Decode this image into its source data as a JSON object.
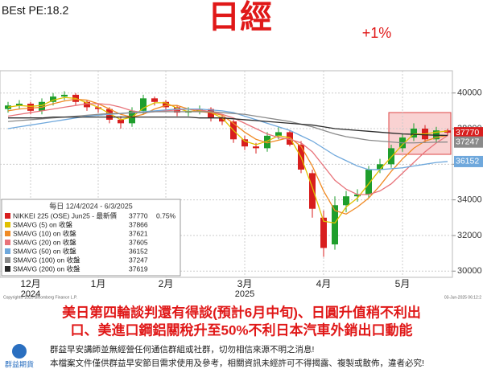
{
  "header": {
    "pe": "BEst PE:18.2",
    "title": "日經",
    "change": "+1%"
  },
  "chart_data": {
    "type": "candlestick",
    "open": [
      39100,
      39300,
      39400,
      39000,
      39500,
      39800,
      39900,
      39500,
      39200,
      39100,
      38500,
      38300,
      39000,
      39700,
      39500,
      39200,
      38900,
      39000,
      39100,
      38600,
      38400,
      37400,
      37000,
      36900,
      37600,
      37800,
      37100,
      35500,
      33000,
      31500,
      33700,
      34200,
      34300,
      35700,
      36000,
      36900,
      37500,
      38000,
      37400,
      37900
    ],
    "high": [
      39500,
      39600,
      39500,
      39700,
      40000,
      40100,
      40000,
      39600,
      39400,
      39200,
      38700,
      39200,
      39900,
      39800,
      39600,
      39300,
      39200,
      39300,
      39200,
      38800,
      38500,
      37600,
      37200,
      37800,
      38100,
      37900,
      37300,
      35700,
      33400,
      34200,
      34500,
      34600,
      35900,
      36300,
      37100,
      37700,
      38300,
      38200,
      38100,
      38000
    ],
    "low": [
      38900,
      39100,
      38800,
      38800,
      39300,
      39600,
      39300,
      39000,
      38900,
      38300,
      38000,
      38100,
      38800,
      39300,
      39000,
      38700,
      38700,
      38800,
      38400,
      38200,
      37200,
      36800,
      36600,
      36700,
      37400,
      37000,
      35500,
      33000,
      30800,
      31200,
      33300,
      33900,
      34100,
      35500,
      35800,
      36700,
      37300,
      37200,
      37200,
      37600
    ],
    "close": [
      39300,
      39400,
      39000,
      39500,
      39800,
      39900,
      39500,
      39200,
      39100,
      38500,
      38300,
      39000,
      39700,
      39500,
      39200,
      38900,
      39000,
      39100,
      38600,
      38400,
      37400,
      37000,
      36900,
      37600,
      37800,
      37100,
      35700,
      33500,
      31300,
      33700,
      34200,
      34300,
      35700,
      36000,
      36900,
      37500,
      38000,
      37400,
      37900,
      37770
    ],
    "up_color": "#1f9e2c",
    "down_color": "#d81e1e",
    "price_name": "NIKKEI 225 (OSE) Jun25 - 最新價",
    "price_color": "#d81e1e",
    "last_change": "0.75%",
    "legend_title": "每日 12/4/2024 - 6/3/2025",
    "series": [
      {
        "name": "SMAVG (5)  on 收盤",
        "color": "#e0c000",
        "values": [
          39200,
          39300,
          39250,
          39300,
          39600,
          39750,
          39700,
          39450,
          39200,
          38850,
          38500,
          38650,
          39150,
          39450,
          39450,
          39150,
          38950,
          39000,
          38900,
          38600,
          37900,
          37300,
          37100,
          37300,
          37600,
          37500,
          36400,
          34700,
          32800,
          32700,
          33600,
          34100,
          34900,
          35700,
          36400,
          37100,
          37700,
          37700,
          37800,
          37866
        ]
      },
      {
        "name": "SMAVG (10)  on 收盤",
        "color": "#f08a24",
        "values": [
          39000,
          39100,
          39150,
          39200,
          39400,
          39550,
          39650,
          39600,
          39400,
          39100,
          38800,
          38650,
          38800,
          39100,
          39300,
          39300,
          39100,
          38950,
          38900,
          38750,
          38300,
          37800,
          37400,
          37200,
          37350,
          37500,
          37000,
          35900,
          34500,
          33400,
          33200,
          33600,
          34100,
          34800,
          35600,
          36300,
          36900,
          37300,
          37500,
          37621
        ]
      },
      {
        "name": "SMAVG (20)  on 收盤",
        "color": "#e8737a",
        "values": [
          38700,
          38800,
          38900,
          39000,
          39100,
          39200,
          39300,
          39400,
          39400,
          39350,
          39200,
          39000,
          38900,
          38950,
          39000,
          39050,
          39100,
          39050,
          38950,
          38800,
          38600,
          38300,
          38000,
          37700,
          37500,
          37400,
          37200,
          36700,
          35900,
          35100,
          34600,
          34300,
          34300,
          34500,
          34900,
          35500,
          36100,
          36700,
          37200,
          37605
        ]
      },
      {
        "name": "SMAVG (50)  on 收盤",
        "color": "#6fa8dc",
        "values": [
          38000,
          38100,
          38200,
          38300,
          38400,
          38500,
          38600,
          38700,
          38750,
          38800,
          38850,
          38900,
          38950,
          39000,
          39050,
          39100,
          39100,
          39100,
          39050,
          39000,
          38900,
          38700,
          38500,
          38300,
          38100,
          37900,
          37600,
          37300,
          36900,
          36500,
          36200,
          35900,
          35700,
          35700,
          35750,
          35800,
          35900,
          36000,
          36100,
          36152
        ]
      },
      {
        "name": "SMAVG (100)  on 收盤",
        "color": "#8a8a8a",
        "values": [
          38400,
          38450,
          38500,
          38550,
          38600,
          38650,
          38700,
          38750,
          38800,
          38850,
          38850,
          38900,
          38900,
          38950,
          38950,
          38950,
          38950,
          38950,
          38950,
          38900,
          38850,
          38800,
          38700,
          38600,
          38500,
          38400,
          38250,
          38100,
          37900,
          37700,
          37550,
          37450,
          37350,
          37300,
          37250,
          37200,
          37200,
          37220,
          37240,
          37247
        ]
      },
      {
        "name": "SMAVG (200)  on 收盤",
        "color": "#2a2a2a",
        "values": [
          38600,
          38600,
          38600,
          38600,
          38650,
          38650,
          38650,
          38650,
          38650,
          38650,
          38650,
          38650,
          38650,
          38650,
          38650,
          38650,
          38650,
          38600,
          38600,
          38600,
          38550,
          38500,
          38450,
          38400,
          38350,
          38300,
          38250,
          38200,
          38100,
          38000,
          37950,
          37900,
          37850,
          37800,
          37750,
          37700,
          37680,
          37650,
          37630,
          37619
        ]
      }
    ],
    "xticks": [
      {
        "value": 2,
        "label": "12月"
      },
      {
        "value": 8,
        "label": "1月"
      },
      {
        "value": 14,
        "label": "2月"
      },
      {
        "value": 21,
        "label": "3月"
      },
      {
        "value": 28,
        "label": "4月"
      },
      {
        "value": 35,
        "label": "5月"
      }
    ],
    "year_ticks": [
      {
        "value": 2,
        "label": "2024"
      },
      {
        "value": 21,
        "label": "2025"
      }
    ],
    "ylim": [
      29650,
      41250
    ],
    "yticks": [
      30000,
      32000,
      34000,
      36000,
      38000,
      40000
    ],
    "grid": true,
    "tags": [
      {
        "series": "close",
        "color": "#d81e1e"
      },
      {
        "series": 4,
        "color": "#8a8a8a"
      },
      {
        "series": 3,
        "color": "#6fa8dc"
      }
    ],
    "source": "Copyright© 2025 Bloomberg Finance L.P.",
    "timestamp": "03-Jun-2025 06:12:2"
  },
  "footer": {
    "headline": [
      "美日第四輪談判還有得談(預計6月中旬)、日圓升值稍不利出",
      "口、美進口鋼鋁關稅升至50%不利日本汽車外銷出口動能"
    ],
    "notes": [
      "群益早安講師並無經營任何通信群組或社群，切勿相信來源不明之消息!",
      "本檔案文件僅供群益早安節目需求使用及參考，相關資訊未經許可不得揭露、複製或散佈，違者必究!"
    ],
    "logo": "群益期貨"
  }
}
